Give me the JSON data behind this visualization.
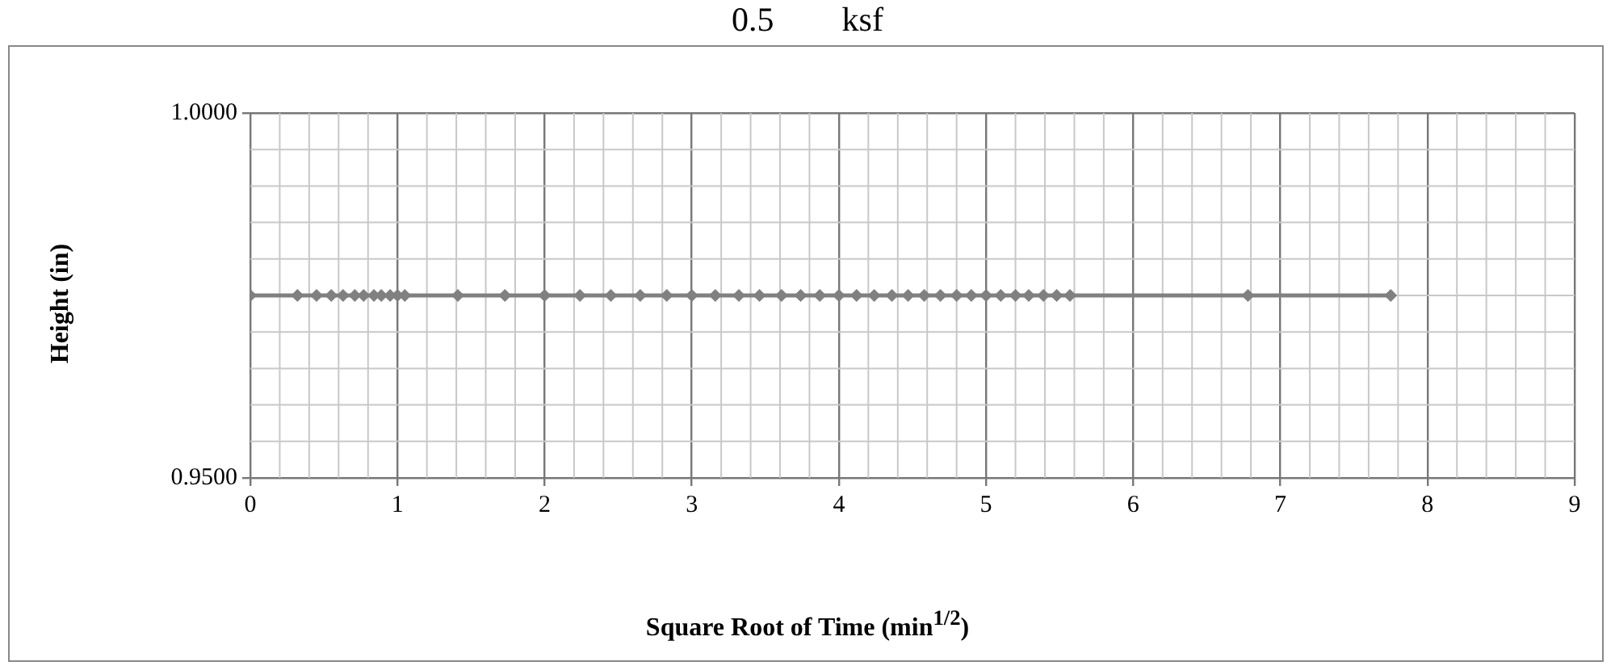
{
  "chart_data": {
    "type": "line",
    "title": "0.5        ksf",
    "xlabel": "Square Root of Time (min$^{1/2}$)",
    "ylabel": "Height (in)",
    "x": [
      0,
      0.32,
      0.45,
      0.55,
      0.63,
      0.71,
      0.77,
      0.84,
      0.89,
      0.95,
      1.0,
      1.05,
      1.41,
      1.73,
      2.0,
      2.24,
      2.45,
      2.65,
      2.83,
      3.0,
      3.16,
      3.32,
      3.46,
      3.61,
      3.74,
      3.87,
      4.0,
      4.12,
      4.24,
      4.36,
      4.47,
      4.58,
      4.69,
      4.8,
      4.9,
      5.0,
      5.1,
      5.2,
      5.29,
      5.39,
      5.48,
      5.57,
      6.78,
      7.75
    ],
    "series": [
      {
        "color": "#808080",
        "values": [
          0.975,
          0.975,
          0.975,
          0.975,
          0.975,
          0.975,
          0.975,
          0.975,
          0.975,
          0.975,
          0.975,
          0.975,
          0.975,
          0.975,
          0.975,
          0.975,
          0.975,
          0.975,
          0.975,
          0.975,
          0.975,
          0.975,
          0.975,
          0.975,
          0.975,
          0.975,
          0.975,
          0.975,
          0.975,
          0.975,
          0.975,
          0.975,
          0.975,
          0.975,
          0.975,
          0.975,
          0.975,
          0.975,
          0.975,
          0.975,
          0.975,
          0.975,
          0.975,
          0.975
        ]
      }
    ],
    "xlim": [
      0,
      9
    ],
    "xticks": [
      0,
      1,
      2,
      3,
      4,
      5,
      6,
      7,
      8,
      9
    ],
    "ylim": [
      0.95,
      1.0
    ],
    "yticks": [
      {
        "value": 0.95,
        "label": "0.9500"
      },
      {
        "value": 1.0,
        "label": "1.0000"
      }
    ],
    "grid": true,
    "legend": false,
    "marker": "diamond",
    "line_style": "solid"
  }
}
